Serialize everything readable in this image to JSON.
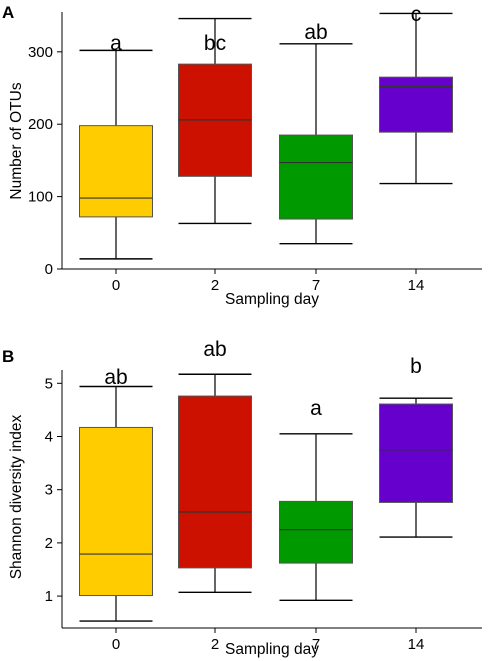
{
  "chart_data": [
    {
      "type": "box",
      "panel_label": "A",
      "xlabel": "Sampling day",
      "ylabel": "Number of OTUs",
      "ylim": [
        0,
        355
      ],
      "yticks": [
        "0",
        "100",
        "200",
        "300"
      ],
      "categories": [
        "0",
        "2",
        "7",
        "14"
      ],
      "boxes": [
        {
          "category": "0",
          "min": 14,
          "q1": 72,
          "median": 98,
          "q3": 198,
          "max": 302,
          "color": "#FFCC00",
          "letter": "a"
        },
        {
          "category": "2",
          "min": 63,
          "q1": 128,
          "median": 206,
          "q3": 283,
          "max": 346,
          "color": "#CC1100",
          "letter": "bc"
        },
        {
          "category": "7",
          "min": 35,
          "q1": 69,
          "median": 147,
          "q3": 185,
          "max": 311,
          "color": "#009900",
          "letter": "ab"
        },
        {
          "category": "14",
          "min": 118,
          "q1": 189,
          "median": 252,
          "q3": 265,
          "max": 353,
          "color": "#6600CC",
          "letter": "c"
        }
      ]
    },
    {
      "type": "box",
      "panel_label": "B",
      "xlabel": "Sampling day",
      "ylabel": "Shannon diversity index",
      "ylim": [
        0.4,
        5.25
      ],
      "yticks": [
        "1",
        "2",
        "3",
        "4",
        "5"
      ],
      "categories": [
        "0",
        "2",
        "7",
        "14"
      ],
      "boxes": [
        {
          "category": "0",
          "min": 0.53,
          "q1": 1.01,
          "median": 1.79,
          "q3": 4.17,
          "max": 4.94,
          "color": "#FFCC00",
          "letter": "ab"
        },
        {
          "category": "2",
          "min": 1.07,
          "q1": 1.53,
          "median": 2.58,
          "q3": 4.76,
          "max": 5.17,
          "color": "#CC1100",
          "letter": "ab"
        },
        {
          "category": "7",
          "min": 0.92,
          "q1": 1.62,
          "median": 2.25,
          "q3": 2.78,
          "max": 4.05,
          "color": "#009900",
          "letter": "a"
        },
        {
          "category": "14",
          "min": 2.11,
          "q1": 2.76,
          "median": 3.75,
          "q3": 4.61,
          "max": 4.72,
          "color": "#6600CC",
          "letter": "b"
        }
      ]
    }
  ]
}
